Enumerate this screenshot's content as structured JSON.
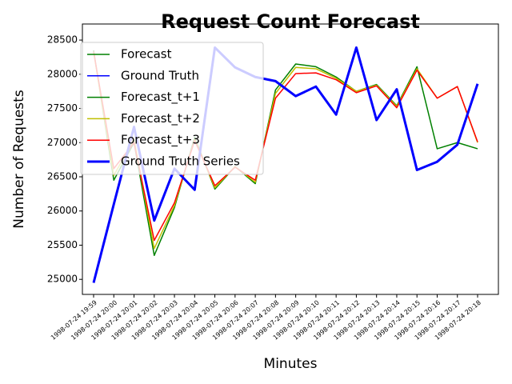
{
  "chart_data": {
    "type": "line",
    "title": "Request Count Forecast",
    "x_label": "Minutes",
    "y_label": "Number of Requests",
    "categories": [
      "1998-07-24 19:59",
      "1998-07-24 20:00",
      "1998-07-24 20:01",
      "1998-07-24 20:02",
      "1998-07-24 20:03",
      "1998-07-24 20:04",
      "1998-07-24 20:05",
      "1998-07-24 20:06",
      "1998-07-24 20:07",
      "1998-07-24 20:08",
      "1998-07-24 20:09",
      "1998-07-24 20:10",
      "1998-07-24 20:11",
      "1998-07-24 20:12",
      "1998-07-24 20:13",
      "1998-07-24 20:14",
      "1998-07-24 20:15",
      "1998-07-24 20:16",
      "1998-07-24 20:17",
      "1998-07-24 20:18"
    ],
    "series": [
      {
        "name": "Forecast",
        "color": "#008000",
        "width": 1.5,
        "values": [
          null,
          null,
          null,
          null,
          null,
          null,
          null,
          null,
          null,
          null,
          null,
          null,
          null,
          null,
          null,
          null,
          null,
          null,
          null,
          null
        ]
      },
      {
        "name": "Ground Truth",
        "color": "#0000ff",
        "width": 1.5,
        "values": [
          null,
          null,
          null,
          null,
          null,
          null,
          null,
          null,
          null,
          null,
          null,
          null,
          null,
          null,
          null,
          null,
          null,
          null,
          null,
          null
        ]
      },
      {
        "name": "Forecast_t+1",
        "color": "#008000",
        "width": 1.5,
        "values": [
          28350,
          26450,
          27000,
          25350,
          26050,
          27080,
          26320,
          26650,
          26400,
          27770,
          28150,
          28110,
          27960,
          27750,
          27850,
          27540,
          28110,
          26910,
          27000,
          26910
        ]
      },
      {
        "name": "Forecast_t+2",
        "color": "#bfbf00",
        "width": 1.5,
        "values": [
          28330,
          26520,
          27050,
          25450,
          26080,
          27050,
          26340,
          26650,
          26420,
          27720,
          28100,
          28080,
          27940,
          27750,
          27840,
          27530,
          28080,
          27650,
          27820,
          27000
        ]
      },
      {
        "name": "Forecast_t+3",
        "color": "#ff0000",
        "width": 1.5,
        "values": [
          28330,
          26620,
          27000,
          25570,
          26120,
          27030,
          26370,
          26640,
          26450,
          27650,
          28010,
          28020,
          27920,
          27730,
          27830,
          27510,
          28060,
          27650,
          27820,
          27010
        ]
      },
      {
        "name": "Ground Truth Series",
        "color": "#0000ff",
        "width": 3,
        "values": [
          24950,
          26100,
          27230,
          25860,
          26620,
          26310,
          28390,
          28100,
          27960,
          27900,
          27680,
          27820,
          27410,
          28390,
          27330,
          27780,
          26600,
          26720,
          26970,
          27860
        ]
      }
    ],
    "ylim": [
      24780,
      28735
    ],
    "yticks": [
      25000,
      25500,
      26000,
      26500,
      27000,
      27500,
      28000,
      28500
    ],
    "legend": "upper left"
  }
}
